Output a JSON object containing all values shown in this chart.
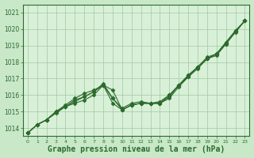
{
  "bg_color": "#c8e8c8",
  "plot_bg_color": "#d8f0d8",
  "grid_color": "#a0c8a0",
  "line_color": "#2d6a2d",
  "xlabel": "Graphe pression niveau de la mer (hPa)",
  "xlabel_fontsize": 7,
  "ylim": [
    1013.5,
    1021.5
  ],
  "yticks": [
    1014,
    1015,
    1016,
    1017,
    1018,
    1019,
    1020,
    1021
  ],
  "xticks": [
    0,
    1,
    2,
    3,
    4,
    5,
    6,
    7,
    8,
    9,
    10,
    11,
    12,
    13,
    14,
    15,
    16,
    17,
    18,
    19,
    20,
    21,
    22,
    23
  ],
  "series": [
    {
      "x": [
        0,
        1,
        2,
        3,
        4,
        5,
        6,
        7,
        8,
        9,
        10,
        11,
        12,
        13,
        14,
        15,
        16,
        17,
        18,
        19,
        20,
        21,
        22,
        23
      ],
      "y": [
        1013.7,
        1014.2,
        1014.5,
        1014.9,
        1015.3,
        1015.5,
        1015.7,
        1016.0,
        1016.6,
        1016.3,
        1015.1,
        1015.4,
        1015.5,
        1015.5,
        1015.5,
        1015.8,
        1016.5,
        1017.1,
        1017.6,
        1018.2,
        1018.4,
        1019.1,
        1019.8,
        1020.5
      ],
      "marker": "D",
      "markersize": 2.5,
      "linewidth": 0.8
    },
    {
      "x": [
        0,
        1,
        2,
        3,
        4,
        5,
        6,
        7,
        8,
        9,
        10,
        11,
        12,
        13,
        14,
        15,
        16,
        17,
        18,
        19,
        20,
        21,
        22,
        23
      ],
      "y": [
        1013.7,
        1014.2,
        1014.5,
        1015.0,
        1015.3,
        1015.6,
        1015.9,
        1016.2,
        1016.6,
        1015.8,
        1015.2,
        1015.5,
        1015.6,
        1015.5,
        1015.5,
        1015.9,
        1016.6,
        1017.1,
        1017.7,
        1018.3,
        1018.5,
        1019.2,
        1019.9,
        1020.5
      ],
      "marker": "D",
      "markersize": 2.5,
      "linewidth": 0.8
    },
    {
      "x": [
        0,
        1,
        2,
        3,
        4,
        5,
        6,
        7,
        8,
        9,
        10,
        11,
        12,
        13,
        14,
        15,
        16,
        17,
        18,
        19,
        20,
        21,
        22,
        23
      ],
      "y": [
        1013.7,
        1014.2,
        1014.5,
        1015.0,
        1015.3,
        1015.7,
        1015.9,
        1016.2,
        1016.7,
        1015.8,
        1015.1,
        1015.4,
        1015.5,
        1015.5,
        1015.5,
        1016.0,
        1016.6,
        1017.2,
        1017.7,
        1018.2,
        1018.5,
        1019.2,
        1019.9,
        1020.5
      ],
      "marker": "D",
      "markersize": 2.5,
      "linewidth": 0.8
    },
    {
      "x": [
        0,
        1,
        2,
        3,
        4,
        5,
        6,
        7,
        8,
        9,
        10,
        11,
        12,
        13,
        14,
        15,
        16,
        17,
        18,
        19,
        20,
        21,
        22,
        23
      ],
      "y": [
        1013.7,
        1014.2,
        1014.5,
        1015.0,
        1015.4,
        1015.8,
        1016.1,
        1016.3,
        1016.6,
        1015.5,
        1015.1,
        1015.4,
        1015.5,
        1015.5,
        1015.6,
        1016.0,
        1016.6,
        1017.2,
        1017.7,
        1018.2,
        1018.5,
        1019.1,
        1019.9,
        1020.5
      ],
      "marker": "D",
      "markersize": 2.5,
      "linewidth": 0.8
    }
  ],
  "figsize": [
    3.2,
    2.0
  ],
  "dpi": 100
}
